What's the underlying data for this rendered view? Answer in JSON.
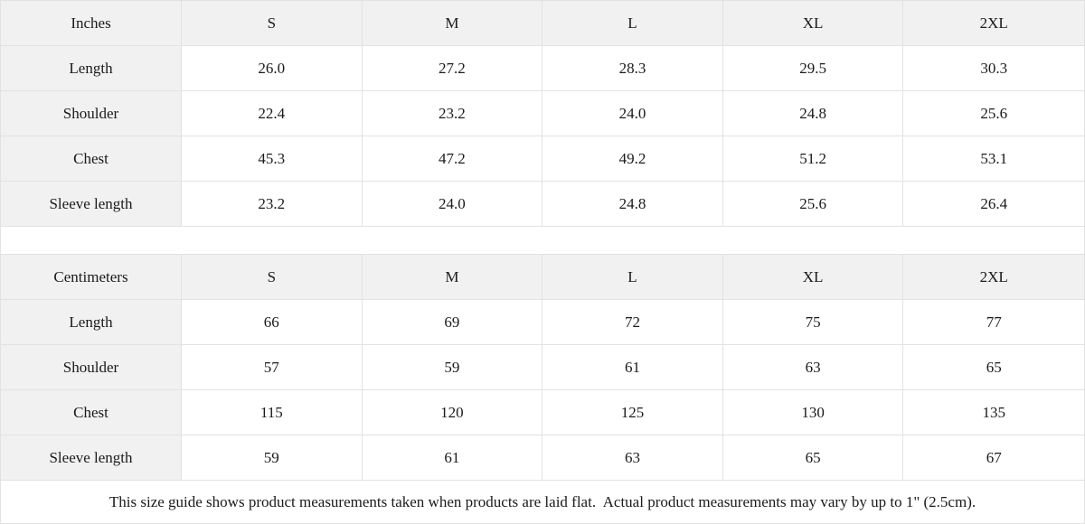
{
  "tables": [
    {
      "unit_label": "Inches",
      "columns": [
        "S",
        "M",
        "L",
        "XL",
        "2XL"
      ],
      "rows": [
        {
          "label": "Length",
          "values": [
            "26.0",
            "27.2",
            "28.3",
            "29.5",
            "30.3"
          ]
        },
        {
          "label": "Shoulder",
          "values": [
            "22.4",
            "23.2",
            "24.0",
            "24.8",
            "25.6"
          ]
        },
        {
          "label": "Chest",
          "values": [
            "45.3",
            "47.2",
            "49.2",
            "51.2",
            "53.1"
          ]
        },
        {
          "label": "Sleeve length",
          "values": [
            "23.2",
            "24.0",
            "24.8",
            "25.6",
            "26.4"
          ]
        }
      ]
    },
    {
      "unit_label": "Centimeters",
      "columns": [
        "S",
        "M",
        "L",
        "XL",
        "2XL"
      ],
      "rows": [
        {
          "label": "Length",
          "values": [
            "66",
            "69",
            "72",
            "75",
            "77"
          ]
        },
        {
          "label": "Shoulder",
          "values": [
            "57",
            "59",
            "61",
            "63",
            "65"
          ]
        },
        {
          "label": "Chest",
          "values": [
            "115",
            "120",
            "125",
            "130",
            "135"
          ]
        },
        {
          "label": "Sleeve length",
          "values": [
            "59",
            "61",
            "63",
            "65",
            "67"
          ]
        }
      ]
    }
  ],
  "footer_note": "This size guide shows product measurements taken when products are laid flat.  Actual product measurements may vary by up to 1\" (2.5cm).",
  "colors": {
    "header_bg": "#f1f1f1",
    "border": "#e2e2e2",
    "text": "#1a1a1a"
  }
}
